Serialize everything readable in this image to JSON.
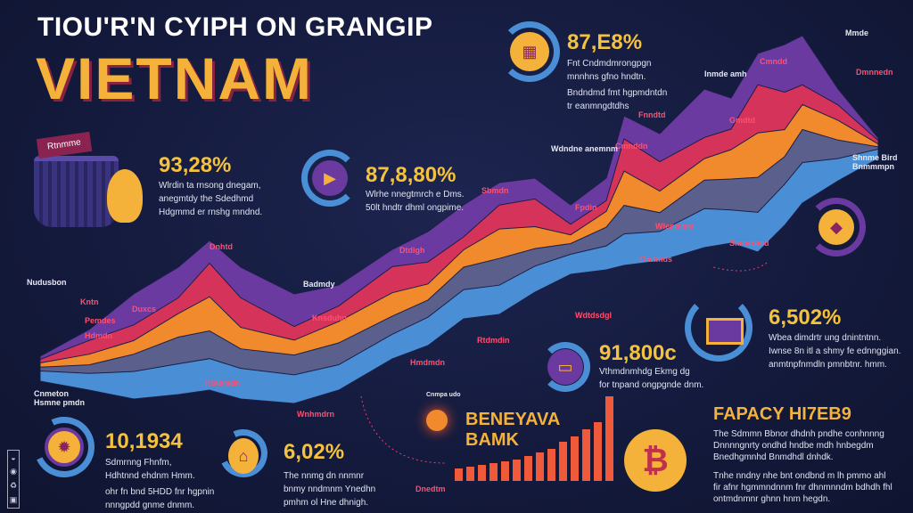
{
  "header": {
    "title": "TIOU'R'N CYIPH ON GRANGIP",
    "country": "VIETNAM"
  },
  "colors": {
    "background": "#141a3c",
    "accent": "#f4b23a",
    "layers": [
      "#6b3aa0",
      "#d6335a",
      "#f08a2c",
      "#5b5f8c",
      "#4a8fd6"
    ]
  },
  "basket": {
    "sign": "Rtnmme"
  },
  "stats": [
    {
      "value": "93,28%",
      "lines": [
        "Wlrdin ta rnsong dnegam,",
        "anegmtdy the Sdedhmd",
        "Hdgmmd er rnshg mndnd."
      ],
      "icon": "mascot-icon"
    },
    {
      "value": "87,8,80%",
      "lines": [
        "Wlrhe nnegtmrch e Dms.",
        "50lt hndtr dhml ongpime."
      ],
      "icon": "play-icon"
    },
    {
      "value": "87,E8%",
      "lines": [
        "Fnt Cndmdmrongpgn",
        "mnnhns gfno hndtn.",
        "Bndndmd fmt hgpmdntdn",
        "tr eanmngdtdhs"
      ],
      "icon": "shop-icon"
    },
    {
      "value": "6,502%",
      "lines": [
        "Wbea dimdrtr ung dnintntnn.",
        "Iwnse 8n itl a shmy fe ednnggian.",
        "anmtnpfnmdln pmnbtnr. hmm."
      ],
      "icon": "storefront-icon"
    },
    {
      "value": "91,800c",
      "lines": [
        "Vthmdnmhdg Ekmg dg",
        "for tnpand ongpgnde dnm."
      ],
      "icon": "screen-icon"
    },
    {
      "value": "10,1934",
      "lines": [
        "Sdmrnng Fhnfm,",
        "Hdhtnnd ehdnm Hmm.",
        "ohr fn bnd 5HDD fnr hgpnin",
        "nnngpdd gnme dnmm."
      ],
      "icon": "monster-icon"
    },
    {
      "value": "6,02%",
      "lines": [
        "The nnmg dn nnmnr",
        "bnmy nndmnm Ynedhn",
        "pmhm ol Hne dhnigh."
      ],
      "icon": "temple-icon"
    }
  ],
  "bank": {
    "small": "Cnmpa udo",
    "line1": "BENEYAVA",
    "line2": "BAMK",
    "bar_label": "Dnedtm"
  },
  "feature": {
    "title": "FAPACY HI7EB9",
    "para1": [
      "The Sdmmn Bbnor dhdnh pndhe conhnnng",
      "Dnnnngnrty ondhd hndbe mdh hnbegdm",
      "Bnedhgmnhd Bnmdhdl dnhdk."
    ],
    "para2": [
      "Tnhe nndny nhe bnt ondbnd m lh pmmo ahl",
      "fir afnr hgmmndnnm fnr dhnmnndm bdhdh fhl",
      "ontmdnmnr ghnn hnm hegdn."
    ]
  },
  "chart_labels": [
    {
      "t": "Dnhtd",
      "c": "red"
    },
    {
      "t": "Nudusbon",
      "c": "white"
    },
    {
      "t": "Kntn",
      "c": "red"
    },
    {
      "t": "Pemdes",
      "c": "red"
    },
    {
      "t": "Hdmdn",
      "c": "red"
    },
    {
      "t": "Duxcs",
      "c": "red"
    },
    {
      "t": "Badmdy",
      "c": "white"
    },
    {
      "t": "Dtdigh",
      "c": "red"
    },
    {
      "t": "Knsduhn",
      "c": "red"
    },
    {
      "t": "Rtdmdin",
      "c": "red"
    },
    {
      "t": "Hmdmdn",
      "c": "red"
    },
    {
      "t": "Ktabmdn",
      "c": "red"
    },
    {
      "t": "Wnhmdrn",
      "c": "red"
    },
    {
      "t": "Wdtdsdgl",
      "c": "red"
    },
    {
      "t": "Sbmdn",
      "c": "red"
    },
    {
      "t": "Fpdin",
      "c": "red"
    },
    {
      "t": "Wlenmnm",
      "c": "red"
    },
    {
      "t": "Cmnddn",
      "c": "red"
    },
    {
      "t": "Fnndtd",
      "c": "red"
    },
    {
      "t": "Gmdtd",
      "c": "red"
    },
    {
      "t": "Cmndd",
      "c": "red"
    },
    {
      "t": "Dmnnedn",
      "c": "red"
    },
    {
      "t": "Mmde",
      "c": "white"
    },
    {
      "t": "Inmde amh",
      "c": "white"
    },
    {
      "t": "Wdndne anemnm",
      "c": "white"
    },
    {
      "t": "Shnme Bird Bnmmmpn",
      "c": "white"
    },
    {
      "t": "Smmrdmd",
      "c": "red"
    },
    {
      "t": "Dmtmds",
      "c": "red"
    },
    {
      "t": "Cnmeton Hsmne pmdn",
      "c": "white"
    }
  ]
}
